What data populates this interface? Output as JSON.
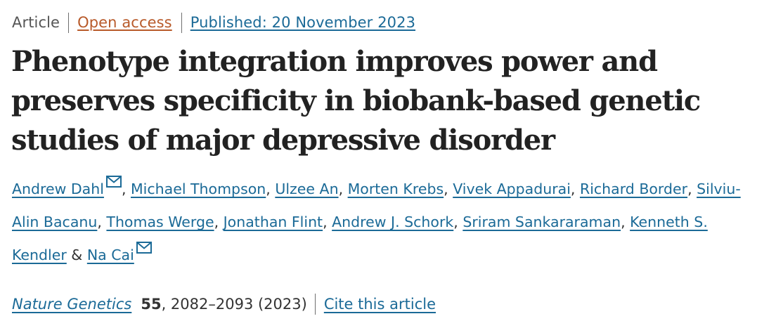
{
  "meta": {
    "article_type": "Article",
    "access": "Open access",
    "published": "Published: 20 November 2023"
  },
  "title": "Phenotype integration improves power and preserves specificity in biobank-based genetic studies of major depressive disorder",
  "authors": [
    {
      "name": "Andrew Dahl",
      "email_icon": "mail-icon",
      "after": ", "
    },
    {
      "name": "Michael Thompson",
      "after": ", "
    },
    {
      "name": "Ulzee An",
      "after": ", "
    },
    {
      "name": "Morten Krebs",
      "after": ", "
    },
    {
      "name": "Vivek Appadurai",
      "after": ", "
    },
    {
      "name": "Richard Border",
      "after": ", "
    },
    {
      "name": "Silviu-Alin Bacanu",
      "after": ", "
    },
    {
      "name": "Thomas Werge",
      "after": ", "
    },
    {
      "name": "Jonathan Flint",
      "after": ", "
    },
    {
      "name": "Andrew J. Schork",
      "after": ", "
    },
    {
      "name": "Sriram Sankararaman",
      "after": ", "
    },
    {
      "name": "Kenneth S. Kendler",
      "after": " & "
    },
    {
      "name": "Na Cai",
      "email_icon": "mail-icon",
      "after": ""
    }
  ],
  "citation": {
    "journal": "Nature Genetics",
    "volume": "55",
    "pages": ", 2082–2093 (2023)",
    "cite_link": "Cite this article"
  },
  "colors": {
    "link": "#1b6a97",
    "open_access": "#b85a2a",
    "text": "#222222"
  }
}
